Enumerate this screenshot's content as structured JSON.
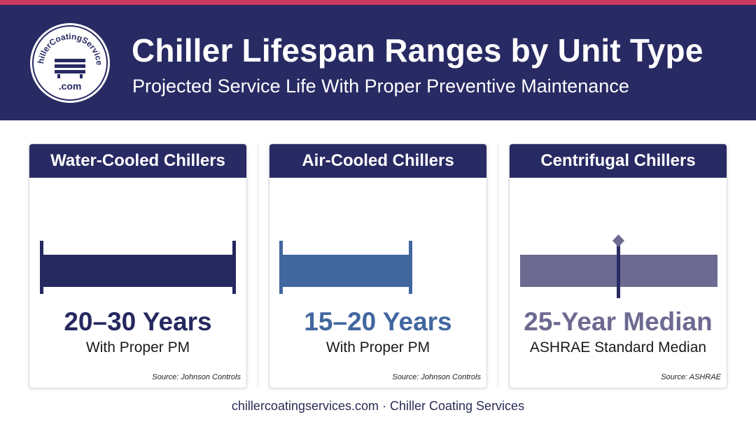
{
  "header": {
    "title": "Chiller Lifespan Ranges by Unit Type",
    "subtitle": "Projected Service Life With Proper Preventive Maintenance"
  },
  "logo": {
    "top_text": "ChillerCoatingServices",
    "bottom_text": ".com"
  },
  "colors": {
    "header": "#282a63",
    "accent_stripe": "#c8385f",
    "water_cooled": "#262860",
    "air_cooled": "#42679f",
    "centrifugal": "#6d6a91"
  },
  "chart_data": [
    {
      "type": "bar",
      "title": "Water-Cooled Chillers",
      "range": [
        20,
        30
      ],
      "value_label": "20–30 Years",
      "note": "With Proper PM",
      "source": "Source: Johnson Controls"
    },
    {
      "type": "bar",
      "title": "Air-Cooled Chillers",
      "range": [
        15,
        20
      ],
      "value_label": "15–20 Years",
      "note": "With Proper PM",
      "source": "Source: Johnson Controls"
    },
    {
      "type": "bar",
      "title": "Centrifugal Chillers",
      "median": 25,
      "value_label": "25-Year Median",
      "note": "ASHRAE Standard Median",
      "source": "Source: ASHRAE"
    }
  ],
  "footer": {
    "text": "chillercoatingservices.com · Chiller Coating Services"
  }
}
